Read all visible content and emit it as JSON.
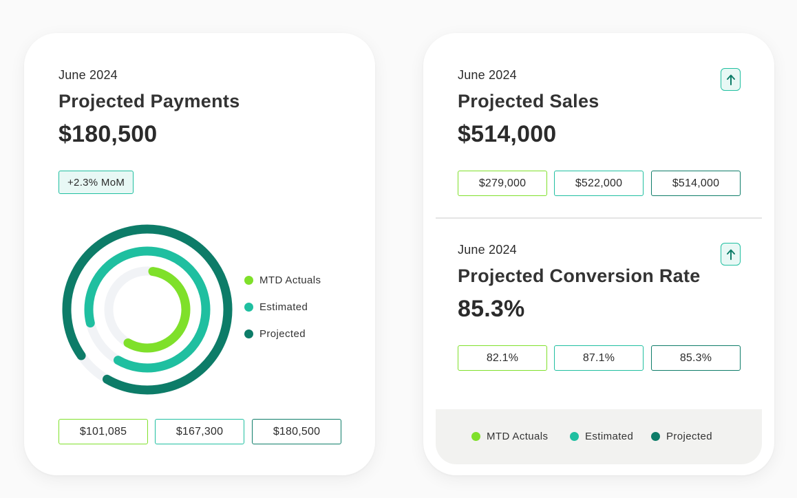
{
  "payments": {
    "period": "June 2024",
    "title": "Projected Payments",
    "amount": "$180,500",
    "mom_badge": "+2.3% MoM",
    "legend": [
      "MTD Actuals",
      "Estimated",
      "Projected"
    ],
    "values": [
      "$101,085",
      "$167,300",
      "$180,500"
    ],
    "progress": {
      "actuals": 0.56,
      "estimated": 0.87,
      "projected": 0.93
    }
  },
  "sales": {
    "period": "June 2024",
    "title": "Projected Sales",
    "amount": "$514,000",
    "trend_icon": "arrow-up-icon",
    "values": [
      "$279,000",
      "$522,000",
      "$514,000"
    ]
  },
  "conversion": {
    "period": "June 2024",
    "title": "Projected Conversion Rate",
    "amount": "85.3%",
    "trend_icon": "arrow-up-icon",
    "values": [
      "82.1%",
      "87.1%",
      "85.3%"
    ]
  },
  "footer_legend": [
    "MTD Actuals",
    "Estimated",
    "Projected"
  ],
  "colors": {
    "actuals": "#7fe02a",
    "estimated": "#1fbfa0",
    "projected": "#0d7c68",
    "track": "#f1f3f6"
  }
}
